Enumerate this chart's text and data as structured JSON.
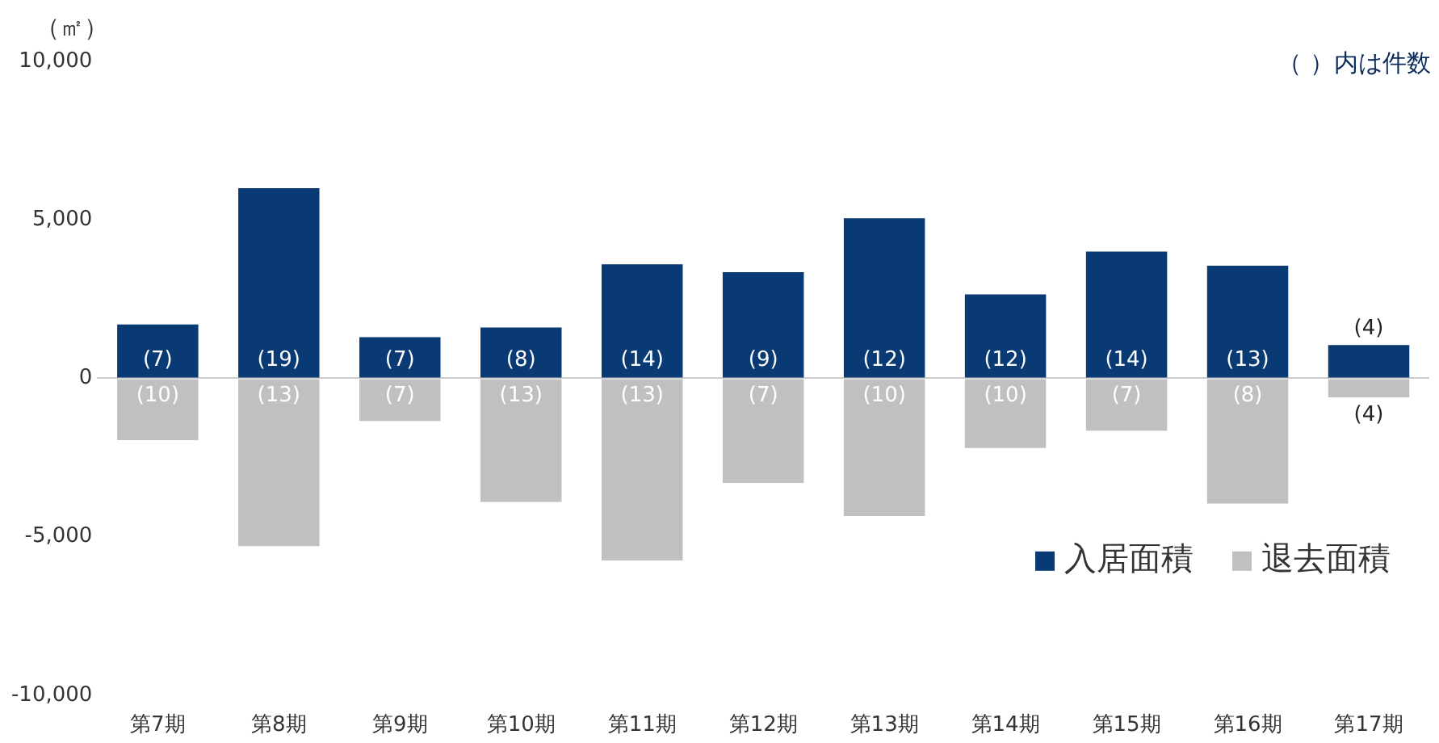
{
  "chart_data": {
    "type": "bar",
    "ylabel": "（㎡）",
    "annotations": [
      "（ ）内は件数",
      "(7)",
      "(19)",
      "(7)",
      "(8)",
      "(14)",
      "(9)",
      "(12)",
      "(12)",
      "(14)",
      "(13)",
      "(4)",
      "(10)",
      "(13)",
      "(7)",
      "(13)",
      "(13)",
      "(7)",
      "(10)",
      "(10)",
      "(7)",
      "(8)",
      "(4)"
    ],
    "categories": [
      "第7期",
      "第8期",
      "第9期",
      "第10期",
      "第11期",
      "第12期",
      "第13期",
      "第14期",
      "第15期",
      "第16期",
      "第17期"
    ],
    "series": [
      {
        "name": "入居面積",
        "color": "#0a3a74",
        "values": [
          1700,
          6000,
          1300,
          1600,
          3600,
          3350,
          5050,
          2650,
          4000,
          3550,
          1050
        ]
      },
      {
        "name": "退去面積",
        "color": "#c0c0c0",
        "values": [
          -1950,
          -5300,
          -1350,
          -3900,
          -5750,
          -3300,
          -4350,
          -2200,
          -1650,
          -3950,
          -600
        ]
      }
    ],
    "stacked": true,
    "ylim": [
      -10000,
      10000
    ],
    "yticks": [
      {
        "value": -10000,
        "label": "-10,000"
      },
      {
        "value": -5000,
        "label": "-5,000"
      },
      0,
      {
        "value": 5000,
        "label": "5,000"
      },
      {
        "value": 10000,
        "label": "10,000"
      }
    ],
    "legend": "bottom right"
  }
}
